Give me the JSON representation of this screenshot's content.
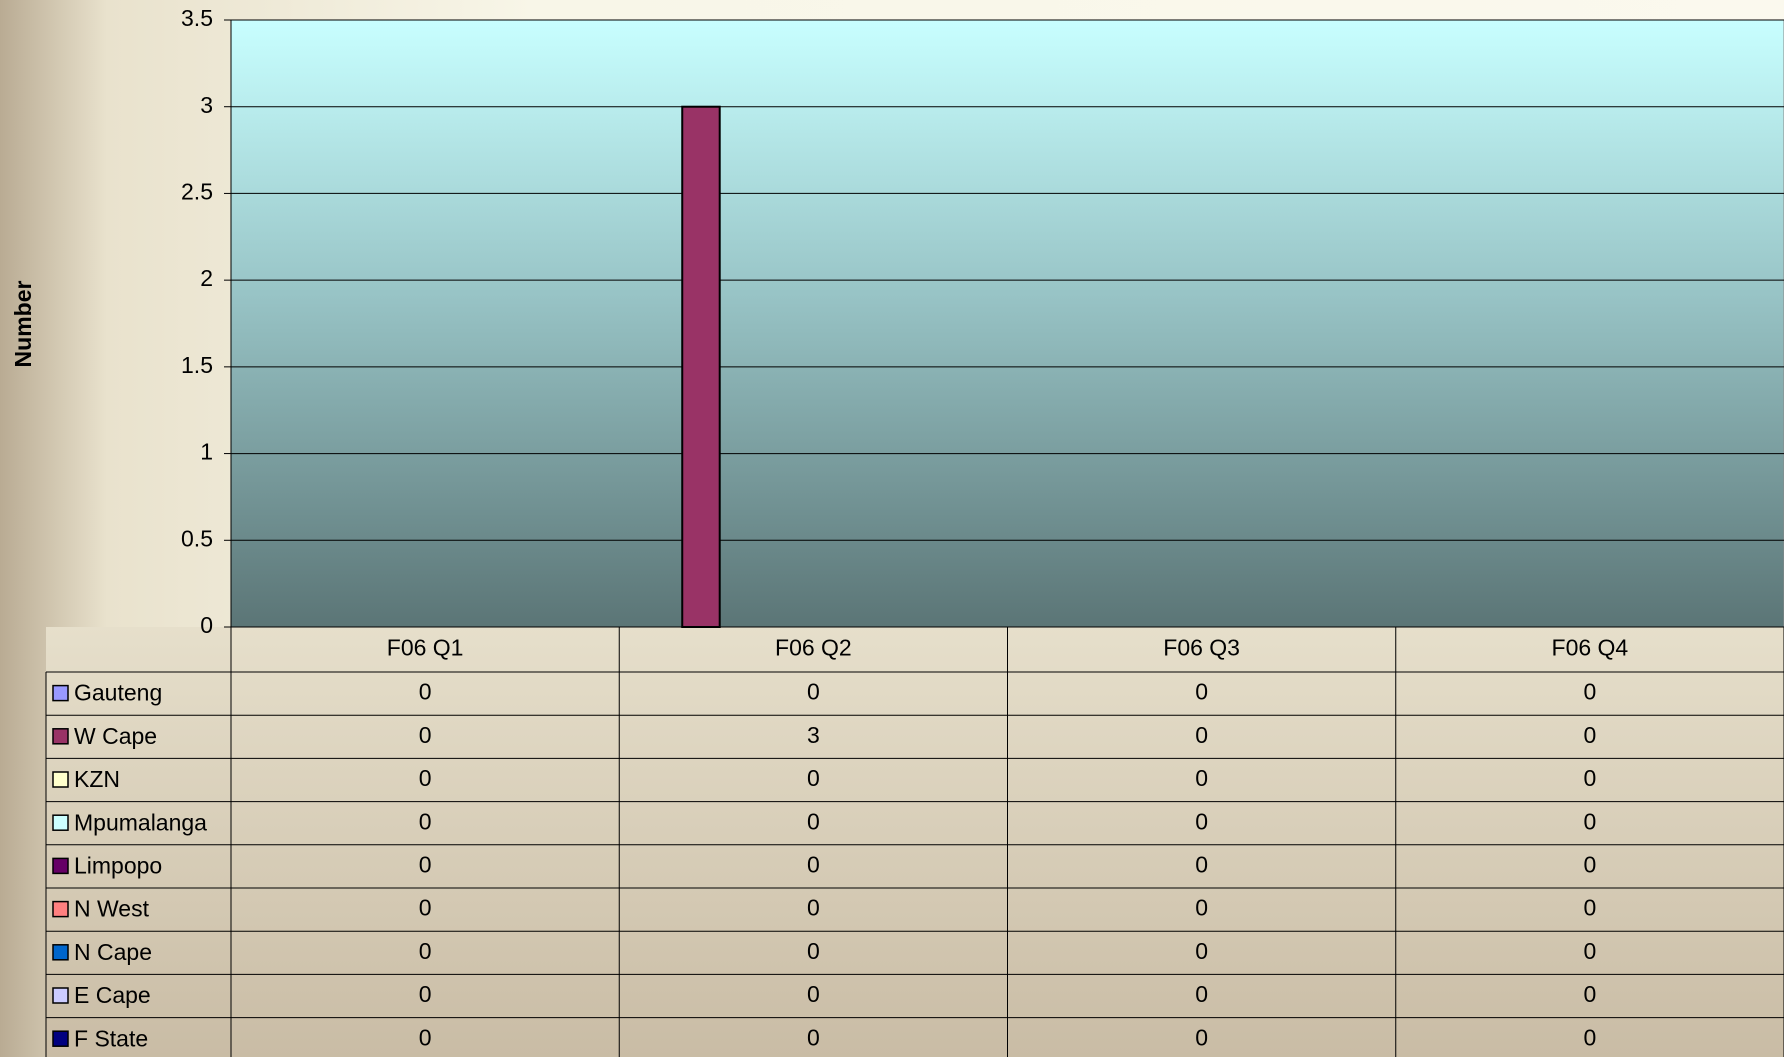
{
  "chart_data": {
    "type": "bar",
    "y_label": "Number",
    "categories": [
      "F06 Q1",
      "F06 Q2",
      "F06 Q3",
      "F06 Q4"
    ],
    "series": [
      {
        "name": "Gauteng",
        "color": "#9999ff",
        "values": [
          0,
          0,
          0,
          0
        ]
      },
      {
        "name": "W Cape",
        "color": "#993366",
        "values": [
          0,
          3,
          0,
          0
        ]
      },
      {
        "name": "KZN",
        "color": "#ffffcc",
        "values": [
          0,
          0,
          0,
          0
        ]
      },
      {
        "name": "Mpumalanga",
        "color": "#ccffff",
        "values": [
          0,
          0,
          0,
          0
        ]
      },
      {
        "name": "Limpopo",
        "color": "#660066",
        "values": [
          0,
          0,
          0,
          0
        ]
      },
      {
        "name": "N West",
        "color": "#ff8080",
        "values": [
          0,
          0,
          0,
          0
        ]
      },
      {
        "name": "N Cape",
        "color": "#0066cc",
        "values": [
          0,
          0,
          0,
          0
        ]
      },
      {
        "name": "E Cape",
        "color": "#ccccff",
        "values": [
          0,
          0,
          0,
          0
        ]
      },
      {
        "name": "F State",
        "color": "#000080",
        "values": [
          0,
          0,
          0,
          0
        ]
      }
    ],
    "ylim": [
      0,
      3.5
    ],
    "yticks": [
      0,
      0.5,
      1,
      1.5,
      2,
      2.5,
      3,
      3.5
    ],
    "grid": true
  }
}
